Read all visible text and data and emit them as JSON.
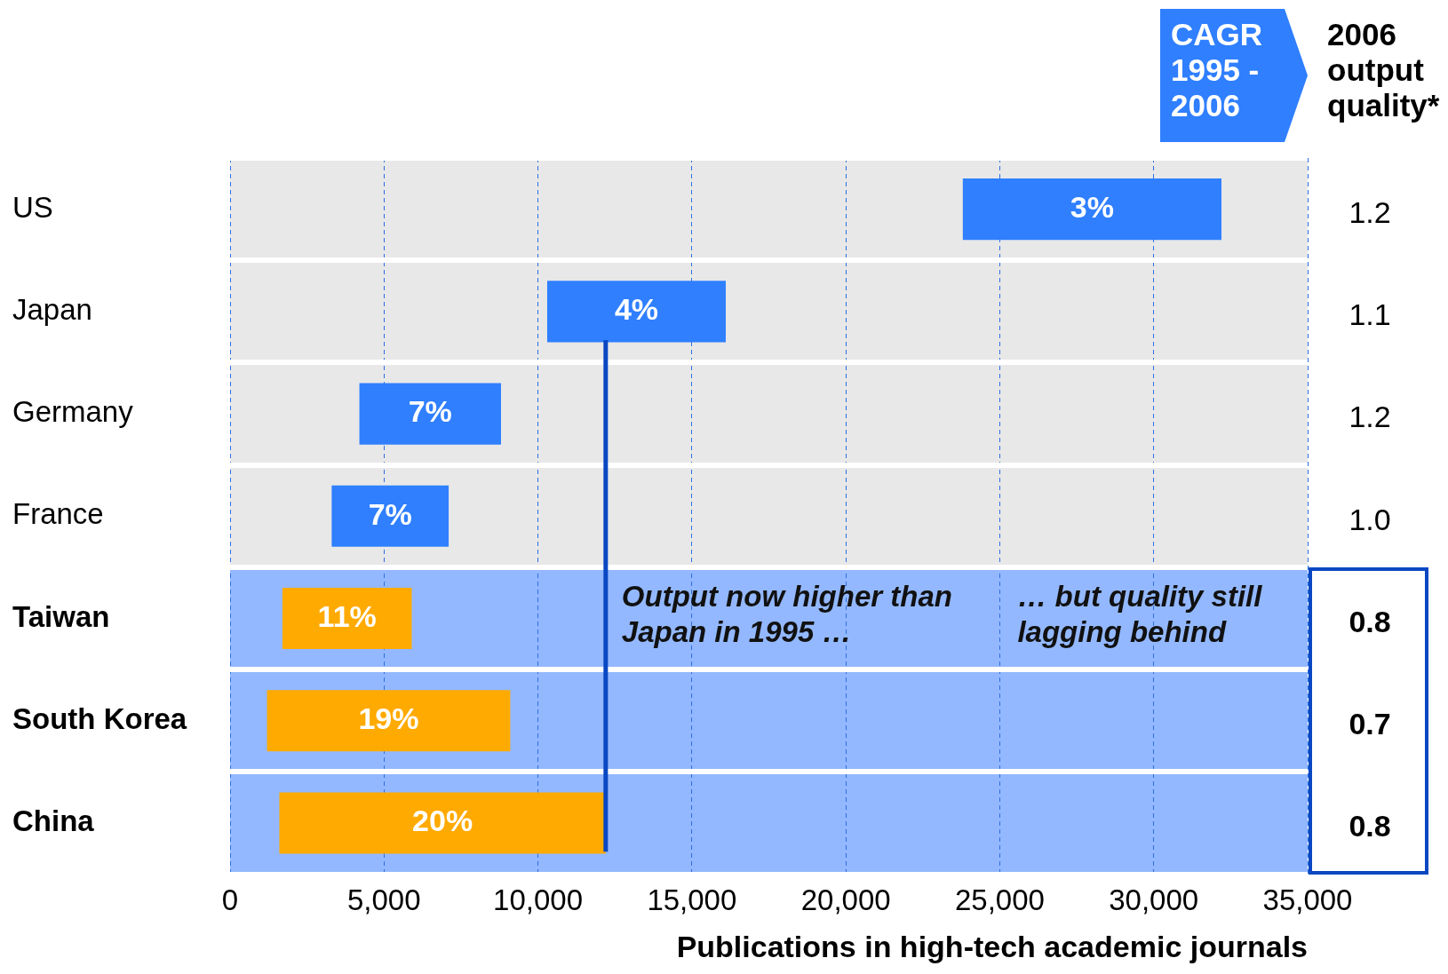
{
  "chart_data": {
    "type": "bar",
    "orientation": "horizontal",
    "categories": [
      "US",
      "Japan",
      "Germany",
      "France",
      "Taiwan",
      "South Korea",
      "China"
    ],
    "y2_categories": [
      "1.2",
      "1.1",
      "1.2",
      "1.0",
      "0.8",
      "0.7",
      "0.8"
    ],
    "y2label": "2006 output quality*",
    "series": [
      {
        "type": "bar",
        "colors": [
          "#2f7fff",
          "#2f7fff",
          "#2f7fff",
          "#2f7fff",
          "#ffaa00",
          "#ffaa00",
          "#ffaa00"
        ],
        "base": [
          23800,
          10300,
          4200,
          3300,
          1700,
          1200,
          1600
        ],
        "values": [
          8400,
          5800,
          4600,
          3800,
          4200,
          7900,
          10600
        ]
      }
    ],
    "xlabel": "Publications in high-tech academic journals",
    "xlim": [
      0,
      35000
    ],
    "xticks": [
      {
        "value": 0,
        "label": "0"
      },
      {
        "value": 5000,
        "label": "5,000"
      },
      {
        "value": 10000,
        "label": "10,000"
      },
      {
        "value": 15000,
        "label": "15,000"
      },
      {
        "value": 20000,
        "label": "20,000"
      },
      {
        "value": 25000,
        "label": "25,000"
      },
      {
        "value": 30000,
        "label": "30,000"
      },
      {
        "value": 35000,
        "label": "35,000"
      }
    ],
    "grid": true,
    "legend": false,
    "bands": [
      {
        "axis": "y",
        "from": "US",
        "to": "France",
        "color": "#e8e8e8"
      },
      {
        "axis": "y",
        "from": "Taiwan",
        "to": "China",
        "color": "#93b8ff"
      }
    ],
    "ref_lines": [
      {
        "axis": "x",
        "value": 12200,
        "color": "#0a47c2"
      }
    ],
    "annotations": [
      "CAGR 1995 - 2006",
      "3%",
      "4%",
      "7%",
      "7%",
      "11%",
      "19%",
      "20%",
      {
        "text": "Output now higher than Japan in 1995 …",
        "x": 12200,
        "y": "Taiwan"
      },
      "… but quality still lagging behind"
    ]
  }
}
